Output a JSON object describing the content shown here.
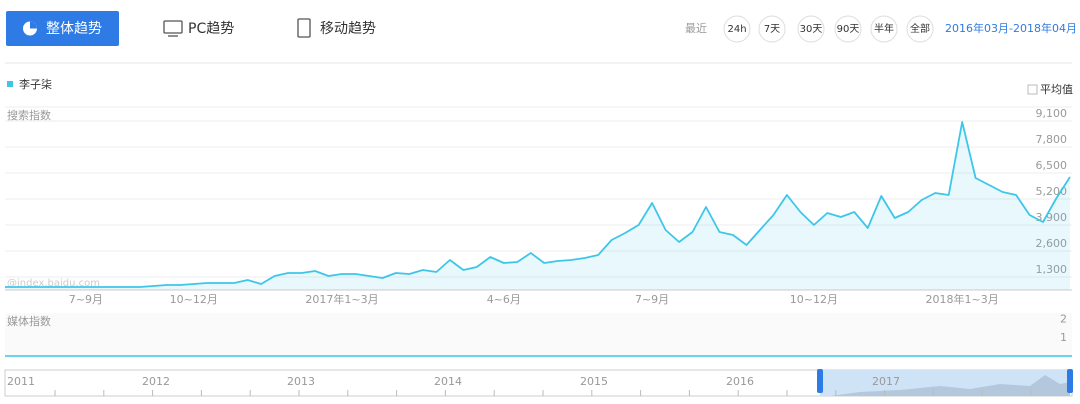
{
  "tabs": [
    "整体趋势",
    "PC趋势",
    "移动趋势"
  ],
  "range_label": "最近",
  "range_buttons": [
    "24h",
    "7天",
    "30天",
    "90天",
    "半年",
    "全部"
  ],
  "date_range": "2016年03月-2018年04月",
  "average_toggle": "平均值",
  "watermark": "@index.baidu.com",
  "timeline": {
    "years": [
      "2011",
      "2012",
      "2013",
      "2014",
      "2015",
      "2016",
      "2017"
    ]
  },
  "chart_data": [
    {
      "type": "area",
      "y_label": "搜索指数",
      "categories": [
        null,
        null,
        null,
        null,
        null,
        null,
        "7~9月",
        null,
        null,
        null,
        null,
        null,
        null,
        null,
        "10~12月",
        null,
        null,
        null,
        null,
        null,
        null,
        null,
        null,
        null,
        null,
        "2017年1~3月",
        null,
        null,
        null,
        null,
        null,
        null,
        null,
        null,
        null,
        null,
        null,
        "4~6月",
        null,
        null,
        null,
        null,
        null,
        null,
        null,
        null,
        null,
        null,
        "7~9月",
        null,
        null,
        null,
        null,
        null,
        null,
        null,
        null,
        null,
        null,
        null,
        "10~12月",
        null,
        null,
        null,
        null,
        null,
        null,
        null,
        null,
        null,
        null,
        "2018年1~3月",
        null,
        null,
        null,
        null,
        null,
        null,
        null,
        null
      ],
      "series": [
        {
          "name": "李子柒",
          "color": "#3ec6e8",
          "values": [
            800,
            800,
            800,
            800,
            800,
            800,
            800,
            800,
            800,
            800,
            800,
            850,
            900,
            900,
            950,
            1000,
            1000,
            1000,
            1150,
            950,
            1350,
            1500,
            1500,
            1600,
            1350,
            1450,
            1450,
            1350,
            1250,
            1500,
            1450,
            1650,
            1550,
            2150,
            1650,
            1800,
            2300,
            2000,
            2050,
            2500,
            2000,
            2100,
            2150,
            2250,
            2400,
            3150,
            3500,
            3900,
            5000,
            3650,
            3050,
            3550,
            4800,
            3550,
            3400,
            2900,
            3650,
            4400,
            5400,
            4550,
            3900,
            4500,
            4300,
            4550,
            3750,
            5350,
            4250,
            4550,
            5150,
            5500,
            5400,
            9050,
            6250,
            5900,
            5550,
            5400,
            4400,
            4050,
            5250,
            6300
          ]
        }
      ],
      "ylim": [
        650,
        9800
      ],
      "yticks": [
        {
          "value": 1300,
          "label": "1,300"
        },
        {
          "value": 2600,
          "label": "2,600"
        },
        {
          "value": 3900,
          "label": "3,900"
        },
        {
          "value": 5200,
          "label": "5,200"
        },
        {
          "value": 6500,
          "label": "6,500"
        },
        {
          "value": 7800,
          "label": "7,800"
        },
        {
          "value": 9100,
          "label": "9,100"
        }
      ],
      "grid": true
    },
    {
      "type": "line",
      "y_label": "媒体指数",
      "color": "#3ec6e8",
      "values": [
        0,
        0
      ],
      "ylim": [
        0,
        2.2
      ],
      "yticks": [
        1,
        2
      ]
    }
  ]
}
